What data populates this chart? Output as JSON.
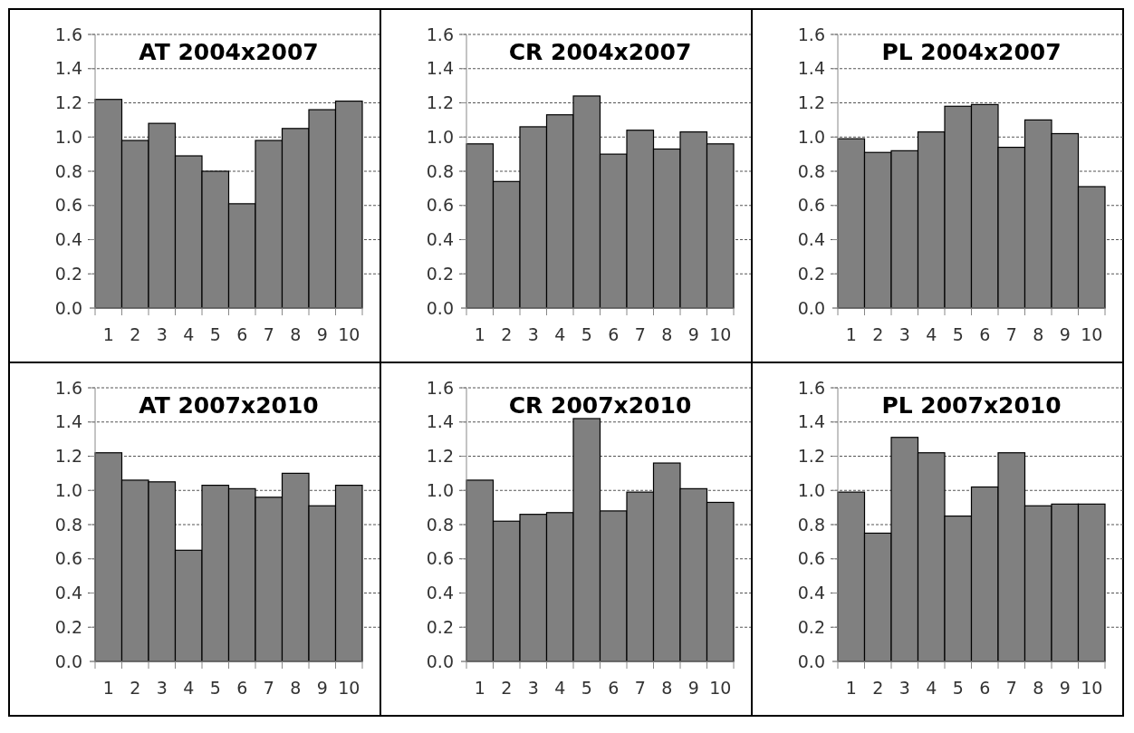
{
  "chart_data": [
    {
      "type": "bar",
      "title": "AT 2004x2007",
      "categories": [
        "1",
        "2",
        "3",
        "4",
        "5",
        "6",
        "7",
        "8",
        "9",
        "10"
      ],
      "values": [
        1.22,
        0.98,
        1.08,
        0.89,
        0.8,
        0.61,
        0.98,
        1.05,
        1.16,
        1.21
      ],
      "color": "#808080",
      "ylim": [
        0,
        1.6
      ],
      "yticks": [
        {
          "value": 0,
          "label": "0.0"
        },
        {
          "value": 0.2,
          "label": "0.2"
        },
        {
          "value": 0.4,
          "label": "0.4"
        },
        {
          "value": 0.6,
          "label": "0.6"
        },
        {
          "value": 0.8,
          "label": "0.8"
        },
        {
          "value": 1,
          "label": "1.0"
        },
        {
          "value": 1.2,
          "label": "1.2"
        },
        {
          "value": 1.4,
          "label": "1.4"
        },
        {
          "value": 1.6,
          "label": "1.6"
        }
      ],
      "grid": "y"
    },
    {
      "type": "bar",
      "title": "CR 2004x2007",
      "categories": [
        "1",
        "2",
        "3",
        "4",
        "5",
        "6",
        "7",
        "8",
        "9",
        "10"
      ],
      "values": [
        0.96,
        0.74,
        1.06,
        1.13,
        1.24,
        0.9,
        1.04,
        0.93,
        1.03,
        0.96
      ],
      "color": "#808080",
      "ylim": [
        0,
        1.6
      ],
      "yticks": [
        {
          "value": 0,
          "label": "0.0"
        },
        {
          "value": 0.2,
          "label": "0.2"
        },
        {
          "value": 0.4,
          "label": "0.4"
        },
        {
          "value": 0.6,
          "label": "0.6"
        },
        {
          "value": 0.8,
          "label": "0.8"
        },
        {
          "value": 1,
          "label": "1.0"
        },
        {
          "value": 1.2,
          "label": "1.2"
        },
        {
          "value": 1.4,
          "label": "1.4"
        },
        {
          "value": 1.6,
          "label": "1.6"
        }
      ],
      "grid": "y"
    },
    {
      "type": "bar",
      "title": "PL 2004x2007",
      "categories": [
        "1",
        "2",
        "3",
        "4",
        "5",
        "6",
        "7",
        "8",
        "9",
        "10"
      ],
      "values": [
        0.99,
        0.91,
        0.92,
        1.03,
        1.18,
        1.19,
        0.94,
        1.1,
        1.02,
        0.71
      ],
      "color": "#808080",
      "ylim": [
        0,
        1.6
      ],
      "yticks": [
        {
          "value": 0,
          "label": "0.0"
        },
        {
          "value": 0.2,
          "label": "0.2"
        },
        {
          "value": 0.4,
          "label": "0.4"
        },
        {
          "value": 0.6,
          "label": "0.6"
        },
        {
          "value": 0.8,
          "label": "0.8"
        },
        {
          "value": 1,
          "label": "1.0"
        },
        {
          "value": 1.2,
          "label": "1.2"
        },
        {
          "value": 1.4,
          "label": "1.4"
        },
        {
          "value": 1.6,
          "label": "1.6"
        }
      ],
      "grid": "y"
    },
    {
      "type": "bar",
      "title": "AT 2007x2010",
      "categories": [
        "1",
        "2",
        "3",
        "4",
        "5",
        "6",
        "7",
        "8",
        "9",
        "10"
      ],
      "values": [
        1.22,
        1.06,
        1.05,
        0.65,
        1.03,
        1.01,
        0.96,
        1.1,
        0.91,
        1.03
      ],
      "color": "#808080",
      "ylim": [
        0,
        1.6
      ],
      "yticks": [
        {
          "value": 0,
          "label": "0.0"
        },
        {
          "value": 0.2,
          "label": "0.2"
        },
        {
          "value": 0.4,
          "label": "0.4"
        },
        {
          "value": 0.6,
          "label": "0.6"
        },
        {
          "value": 0.8,
          "label": "0.8"
        },
        {
          "value": 1,
          "label": "1.0"
        },
        {
          "value": 1.2,
          "label": "1.2"
        },
        {
          "value": 1.4,
          "label": "1.4"
        },
        {
          "value": 1.6,
          "label": "1.6"
        }
      ],
      "grid": "y"
    },
    {
      "type": "bar",
      "title": "CR 2007x2010",
      "categories": [
        "1",
        "2",
        "3",
        "4",
        "5",
        "6",
        "7",
        "8",
        "9",
        "10"
      ],
      "values": [
        1.06,
        0.82,
        0.86,
        0.87,
        1.42,
        0.88,
        0.99,
        1.16,
        1.01,
        0.93
      ],
      "color": "#808080",
      "ylim": [
        0,
        1.6
      ],
      "yticks": [
        {
          "value": 0,
          "label": "0.0"
        },
        {
          "value": 0.2,
          "label": "0.2"
        },
        {
          "value": 0.4,
          "label": "0.4"
        },
        {
          "value": 0.6,
          "label": "0.6"
        },
        {
          "value": 0.8,
          "label": "0.8"
        },
        {
          "value": 1,
          "label": "1.0"
        },
        {
          "value": 1.2,
          "label": "1.2"
        },
        {
          "value": 1.4,
          "label": "1.4"
        },
        {
          "value": 1.6,
          "label": "1.6"
        }
      ],
      "grid": "y"
    },
    {
      "type": "bar",
      "title": "PL 2007x2010",
      "categories": [
        "1",
        "2",
        "3",
        "4",
        "5",
        "6",
        "7",
        "8",
        "9",
        "10"
      ],
      "values": [
        0.99,
        0.75,
        1.31,
        1.22,
        0.85,
        1.02,
        1.22,
        0.91,
        0.92,
        0.92
      ],
      "color": "#808080",
      "ylim": [
        0,
        1.6
      ],
      "yticks": [
        {
          "value": 0,
          "label": "0.0"
        },
        {
          "value": 0.2,
          "label": "0.2"
        },
        {
          "value": 0.4,
          "label": "0.4"
        },
        {
          "value": 0.6,
          "label": "0.6"
        },
        {
          "value": 0.8,
          "label": "0.8"
        },
        {
          "value": 1,
          "label": "1.0"
        },
        {
          "value": 1.2,
          "label": "1.2"
        },
        {
          "value": 1.4,
          "label": "1.4"
        },
        {
          "value": 1.6,
          "label": "1.6"
        }
      ],
      "grid": "y"
    }
  ]
}
